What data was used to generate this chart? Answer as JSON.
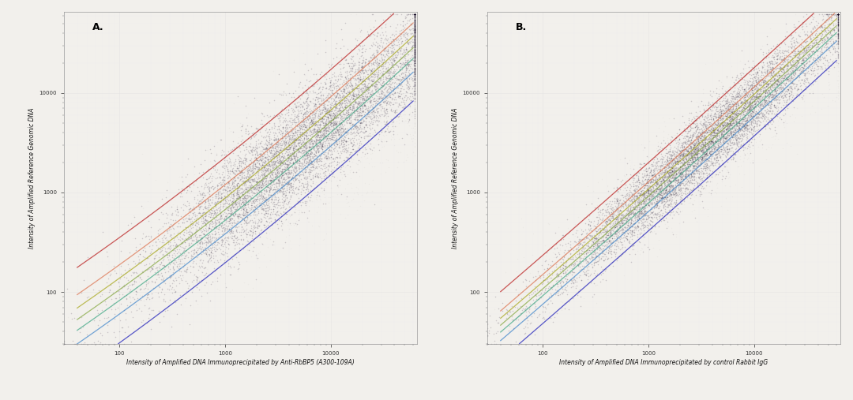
{
  "fig_width": 10.8,
  "fig_height": 5.07,
  "bg_color": "#f2f0ec",
  "panel_bg": "#f2f0ec",
  "title_A": "A.",
  "title_B": "B.",
  "xlabel_A": "Intensity of Amplified DNA Immunoprecipitated by Anti-RbBP5 (A300-109A)",
  "xlabel_B": "Intensity of Amplified DNA Immunoprecipitated by control Rabbit IgG",
  "ylabel": "Intensity of Amplified Reference Genomic DNA",
  "xlim_A": [
    30,
    65000
  ],
  "ylim_A": [
    30,
    65000
  ],
  "xlim_B": [
    30,
    65000
  ],
  "ylim_B": [
    30,
    65000
  ],
  "scatter_color": "#150a25",
  "scatter_alpha": 0.18,
  "scatter_size": 1.2,
  "curve_colors": [
    "#2222bb",
    "#4488cc",
    "#44aa88",
    "#88aa44",
    "#aaaa22",
    "#dd7755",
    "#bb2222"
  ],
  "curve_alpha": 0.75,
  "n_points": 9000,
  "seed_A": 42,
  "seed_B": 77,
  "tick_label_size": 5,
  "axis_label_size": 5.5,
  "panel_label_size": 9,
  "n_curves": 7
}
